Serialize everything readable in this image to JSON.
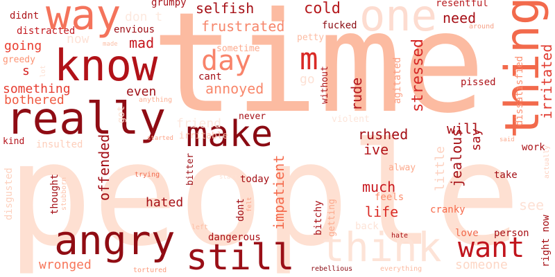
{
  "words": [
    {
      "text": "time",
      "color": "#fcbba1"
    },
    {
      "text": "people",
      "color": "#fee0d2"
    },
    {
      "text": "know",
      "color": "#b11218"
    },
    {
      "text": "really",
      "color": "#8f0c14"
    },
    {
      "text": "way",
      "color": "#f4735b"
    },
    {
      "text": "one",
      "color": "#fddcd0"
    },
    {
      "text": "thing",
      "color": "#f26a4c"
    },
    {
      "text": "make",
      "color": "#8a0a12"
    },
    {
      "text": "angry",
      "color": "#900c13"
    },
    {
      "text": "still",
      "color": "#9a0f17"
    },
    {
      "text": "think",
      "color": "#fde3d7"
    },
    {
      "text": "want",
      "color": "#c0141c"
    },
    {
      "text": "day",
      "color": "#f8836a"
    },
    {
      "text": "m",
      "color": "#d92a26"
    },
    {
      "text": "selfish",
      "color": "#a50f15"
    },
    {
      "text": "cold",
      "color": "#b51a1e"
    },
    {
      "text": "grumpy",
      "color": "#a8121a"
    },
    {
      "text": "resentful",
      "color": "#b81d21"
    },
    {
      "text": "didnt",
      "color": "#ad1419"
    },
    {
      "text": "don t",
      "color": "#fde9df"
    },
    {
      "text": "distracted",
      "color": "#c2191f"
    },
    {
      "text": "envious",
      "color": "#9d0d14"
    },
    {
      "text": "frustrated",
      "color": "#f6866b"
    },
    {
      "text": "fucked",
      "color": "#8b0b12"
    },
    {
      "text": "need",
      "color": "#a60f16"
    },
    {
      "text": "going",
      "color": "#e93d2f"
    },
    {
      "text": "mad",
      "color": "#c5151c"
    },
    {
      "text": "now",
      "color": "#fee2d6"
    },
    {
      "text": "made",
      "color": "#fcbfa7"
    },
    {
      "text": "sometime",
      "color": "#fca98c"
    },
    {
      "text": "petty",
      "color": "#fcbca3"
    },
    {
      "text": "around",
      "color": "#f6a086"
    },
    {
      "text": "greedy",
      "color": "#fc9373"
    },
    {
      "text": "s",
      "color": "#d52221"
    },
    {
      "text": "lot",
      "color": "#fde0d3"
    },
    {
      "text": "cant",
      "color": "#a30e15"
    },
    {
      "text": "annoyed",
      "color": "#f8876b"
    },
    {
      "text": "go",
      "color": "#fde1d5"
    },
    {
      "text": "without",
      "color": "#ab1117"
    },
    {
      "text": "rude",
      "color": "#b3151b"
    },
    {
      "text": "stressed",
      "color": "#d52624"
    },
    {
      "text": "agitated",
      "color": "#fc9d80"
    },
    {
      "text": "pissed",
      "color": "#ad1218"
    },
    {
      "text": "dissatisfied",
      "color": "#fc8f71"
    },
    {
      "text": "irritated",
      "color": "#e13c31"
    },
    {
      "text": "something",
      "color": "#e63c30"
    },
    {
      "text": "bothered",
      "color": "#ef5a41"
    },
    {
      "text": "even",
      "color": "#9e0f16"
    },
    {
      "text": "anything",
      "color": "#fcaf94"
    },
    {
      "text": "got",
      "color": "#fce0d2"
    },
    {
      "text": "friend",
      "color": "#fde8de"
    },
    {
      "text": "violent",
      "color": "#fde5da"
    },
    {
      "text": "irritable",
      "color": "#fdcab6"
    },
    {
      "text": "never",
      "color": "#a40f16"
    },
    {
      "text": "rushed",
      "color": "#a50f15"
    },
    {
      "text": "will",
      "color": "#a81117"
    },
    {
      "text": "say",
      "color": "#a90f16"
    },
    {
      "text": "kind",
      "color": "#b3121a"
    },
    {
      "text": "insulted",
      "color": "#fdcebb"
    },
    {
      "text": "started",
      "color": "#fca286"
    },
    {
      "text": "said",
      "color": "#fcaa8e"
    },
    {
      "text": "ive",
      "color": "#b31519"
    },
    {
      "text": "offended",
      "color": "#a20d14"
    },
    {
      "text": "impatient",
      "color": "#f56b4d"
    },
    {
      "text": "jealous",
      "color": "#a50f15"
    },
    {
      "text": "work",
      "color": "#ab1318"
    },
    {
      "text": "actually",
      "color": "#fdd1c0"
    },
    {
      "text": "disgusted",
      "color": "#fdd0bd"
    },
    {
      "text": "alway",
      "color": "#fca98c"
    },
    {
      "text": "little",
      "color": "#fdd2c1"
    },
    {
      "text": "stubborn",
      "color": "#fdc1a9"
    },
    {
      "text": "trying",
      "color": "#f26c50"
    },
    {
      "text": "today",
      "color": "#a50f15"
    },
    {
      "text": "start",
      "color": "#fde2d5"
    },
    {
      "text": "thought",
      "color": "#a30e15"
    },
    {
      "text": "hated",
      "color": "#a50f15"
    },
    {
      "text": "bitter",
      "color": "#9c0d14"
    },
    {
      "text": "dont",
      "color": "#a10e15"
    },
    {
      "text": "felt",
      "color": "#fca185"
    },
    {
      "text": "much",
      "color": "#c8171e"
    },
    {
      "text": "bitchy",
      "color": "#a80f16"
    },
    {
      "text": "getting",
      "color": "#fca88b"
    },
    {
      "text": "feels",
      "color": "#fc8d6d"
    },
    {
      "text": "take",
      "color": "#a30e15"
    },
    {
      "text": "life",
      "color": "#da2d27"
    },
    {
      "text": "cranky",
      "color": "#f7694a"
    },
    {
      "text": "see",
      "color": "#fde1d5"
    },
    {
      "text": "left",
      "color": "#fcbea5"
    },
    {
      "text": "back",
      "color": "#fde3d7"
    },
    {
      "text": "hate",
      "color": "#a90f16"
    },
    {
      "text": "love",
      "color": "#f26a4c"
    },
    {
      "text": "person",
      "color": "#a70f15"
    },
    {
      "text": "right now",
      "color": "#a50f15"
    },
    {
      "text": "dangerous",
      "color": "#a90f15"
    },
    {
      "text": "wronged",
      "color": "#f7765a"
    },
    {
      "text": "someone",
      "color": "#fdd7c6"
    },
    {
      "text": "tortured",
      "color": "#fc9b7d"
    },
    {
      "text": "rebellious",
      "color": "#8b0a12"
    },
    {
      "text": "everything",
      "color": "#fcb99f"
    }
  ]
}
